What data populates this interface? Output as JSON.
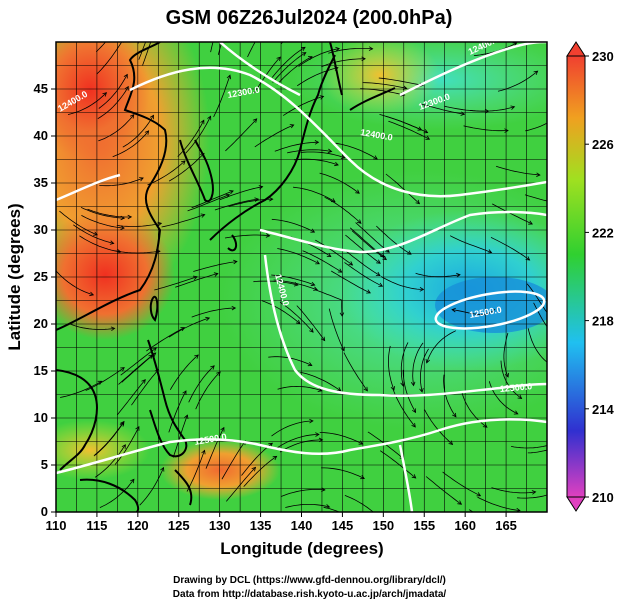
{
  "title": "GSM 06Z26Jul2024 (200.0hPa)",
  "x_axis": {
    "label": "Longitude (degrees)",
    "ticks": [
      "110",
      "115",
      "120",
      "125",
      "130",
      "135",
      "140",
      "145",
      "150",
      "155",
      "160",
      "165"
    ],
    "range": [
      110,
      170
    ]
  },
  "y_axis": {
    "label": "Latitude  (degrees)",
    "ticks": [
      "0",
      "5",
      "10",
      "15",
      "20",
      "25",
      "30",
      "35",
      "40",
      "45"
    ],
    "range": [
      0,
      50
    ]
  },
  "colorbar": {
    "ticks": [
      "210",
      "214",
      "218",
      "222",
      "226",
      "230"
    ],
    "range": [
      210,
      230
    ],
    "colors": [
      "#e040c0",
      "#3030d0",
      "#20c0f0",
      "#30d030",
      "#a0e020",
      "#f0a020",
      "#f04030"
    ]
  },
  "contour_labels": [
    "12300.0",
    "12300.0",
    "12400.0",
    "12400.0",
    "12400.0",
    "12500.0",
    "12500.0",
    "12500.0",
    "12400.0"
  ],
  "credits": {
    "line1": "Drawing by DCL (https://www.gfd-dennou.org/library/dcl/)",
    "line2": "Data from http://database.rish.kyoto-u.ac.jp/arch/jmadata/"
  },
  "colors": {
    "land_outline": "#000000",
    "contour": "#ffffff",
    "streamline": "#000000"
  }
}
